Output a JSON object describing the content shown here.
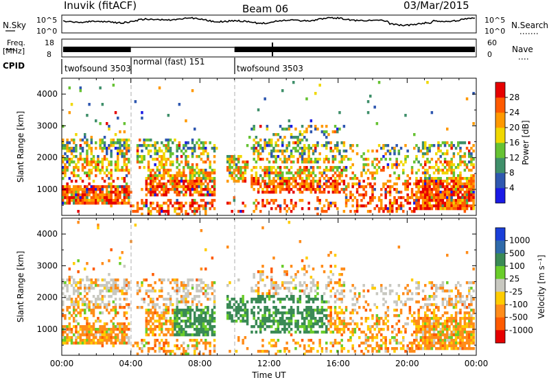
{
  "header": {
    "station": "Inuvik (fitACF)",
    "beam": "Beam 06",
    "date": "03/Mar/2015"
  },
  "strips": {
    "nsky_label": "N.Sky",
    "nsky_ticks_left": [
      "10^5",
      "10^0"
    ],
    "nsky_ticks_right": [
      "10^5",
      "10^0"
    ],
    "nsearch_label": "N.Search",
    "freq_label_line1": "Freq.",
    "freq_label_line2": "[MHz]",
    "freq_ticks": [
      "18",
      "8"
    ],
    "nave_ticks": [
      "60",
      "0"
    ],
    "nave_label": "Nave",
    "cpid_label": "CPID",
    "cpid_segments": [
      {
        "label": "twofsound 3503",
        "start_hour": 0,
        "end_hour": 4
      },
      {
        "label": "normal (fast) 151",
        "start_hour": 4,
        "end_hour": 10
      },
      {
        "label": "twofsound 3503",
        "start_hour": 10,
        "end_hour": 24
      }
    ]
  },
  "chart_data": [
    {
      "type": "heatmap",
      "name": "power",
      "ylabel": "Slant Range [km]",
      "ylim": [
        180,
        4500
      ],
      "yticks": [
        "1000",
        "2000",
        "3000",
        "4000"
      ],
      "colorbar_label": "Power [dB]",
      "colorbar_ticks": [
        "4",
        "8",
        "12",
        "16",
        "20",
        "24",
        "28"
      ],
      "colorbar_colors": [
        "#1a1ae6",
        "#2f58b0",
        "#3f8f6a",
        "#66c233",
        "#f0d800",
        "#ff9900",
        "#ff5a00",
        "#e60000"
      ]
    },
    {
      "type": "heatmap",
      "name": "velocity",
      "ylabel": "Slant Range [km]",
      "xlabel": "Time UT",
      "ylim": [
        180,
        4500
      ],
      "yticks": [
        "1000",
        "2000",
        "3000",
        "4000"
      ],
      "xticks": [
        "00:00",
        "04:00",
        "08:00",
        "12:00",
        "16:00",
        "20:00",
        "00:00"
      ],
      "colorbar_label": "Velocity [m s⁻¹]",
      "colorbar_ticks": [
        "1000",
        "500",
        "100",
        "25",
        "-25",
        "-100",
        "-500",
        "-1000"
      ],
      "colorbar_colors": [
        "#1a3fd9",
        "#2f6aaa",
        "#3a8a55",
        "#6acd2a",
        "#c8c8c0",
        "#ffcc00",
        "#ff8c1a",
        "#ff5a00",
        "#e60000"
      ]
    }
  ]
}
